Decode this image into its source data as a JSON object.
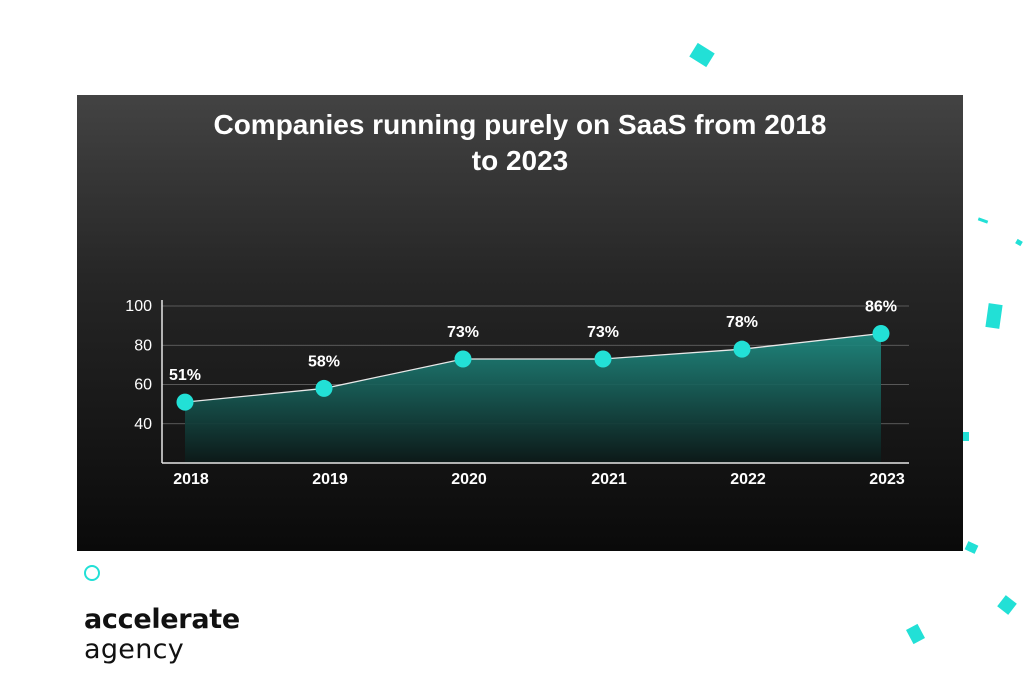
{
  "colors": {
    "accent": "#22e0d6",
    "area_top": "#1f8f85",
    "area_bottom": "#0c1918",
    "text": "#ffffff"
  },
  "chart_data": {
    "type": "area",
    "title": "Companies running purely on SaaS from 2018\nto 2023",
    "categories": [
      "2018",
      "2019",
      "2020",
      "2021",
      "2022",
      "2023"
    ],
    "series": [
      {
        "name": "Companies running purely on SaaS",
        "values": [
          51,
          58,
          73,
          73,
          78,
          86
        ]
      }
    ],
    "data_labels": [
      "51%",
      "58%",
      "73%",
      "73%",
      "78%",
      "86%"
    ],
    "yticks": [
      40,
      60,
      80,
      100
    ],
    "ytick_labels": [
      "40",
      "60",
      "80",
      "100"
    ],
    "ylim": [
      20,
      100
    ],
    "grid": true,
    "xlabel": "",
    "ylabel": ""
  },
  "brand": {
    "line1": "accelerate",
    "line2": "agency"
  }
}
